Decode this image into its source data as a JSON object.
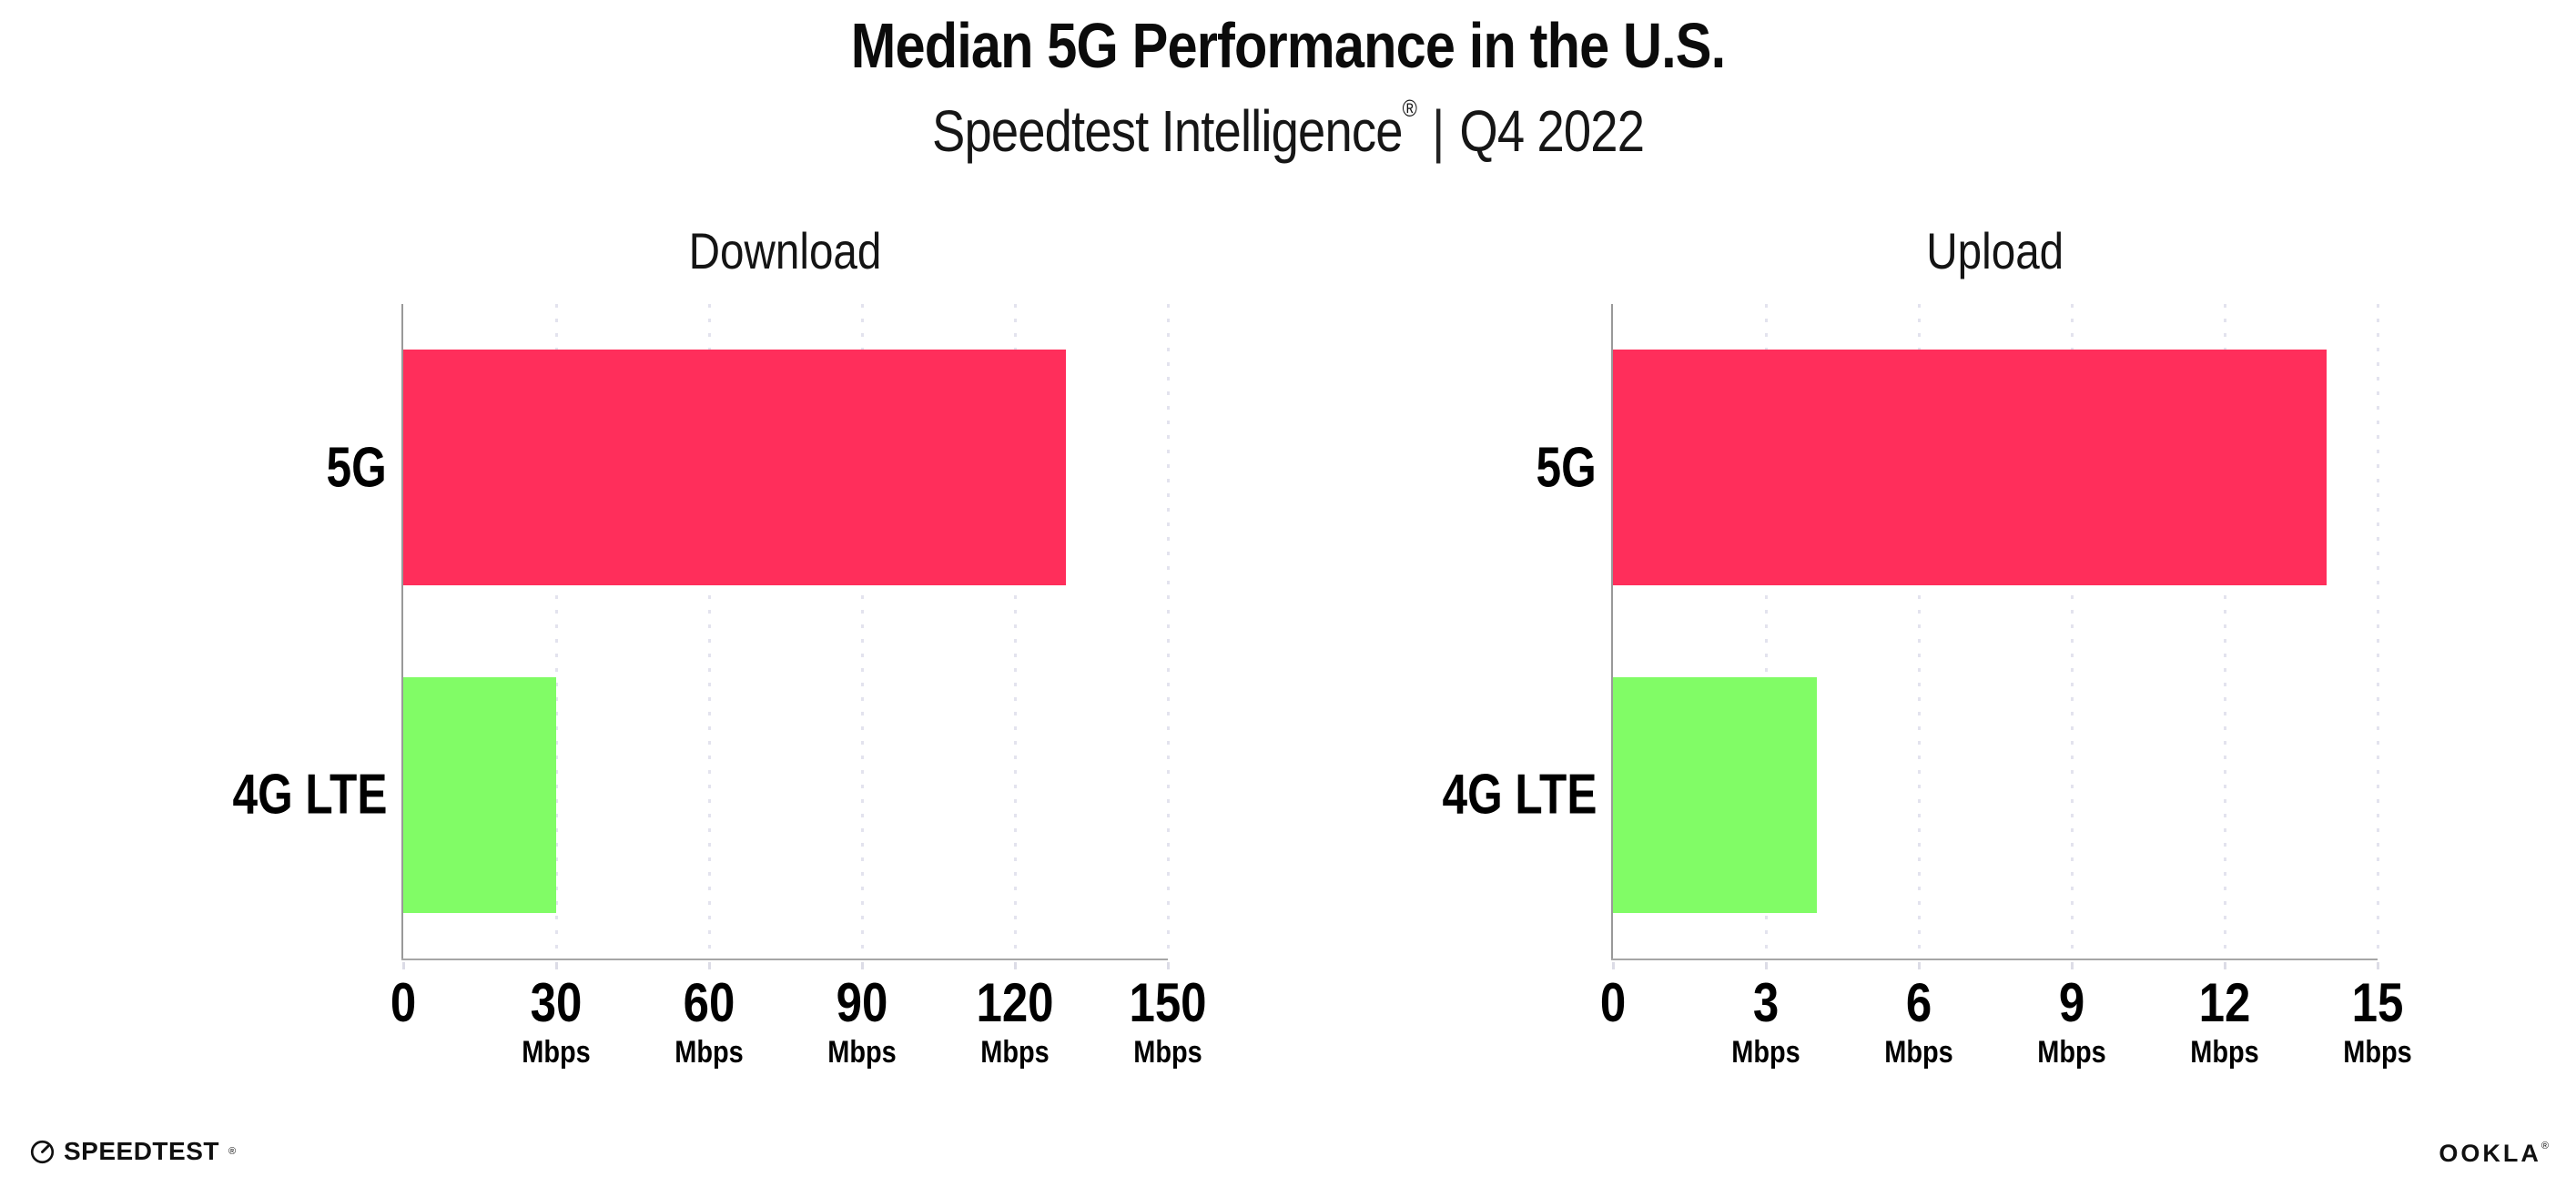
{
  "header": {
    "title": "Median 5G Performance in the U.S.",
    "subtitle_brand": "Speedtest Intelligence",
    "subtitle_reg": "®",
    "subtitle_sep": "|",
    "subtitle_period": "Q4 2022"
  },
  "colors": {
    "bar_5g": "#FF2E5B",
    "bar_4g_lte": "#81FC66",
    "axis_spine": "#999999",
    "gridline": "#E3E3EE",
    "text": "#0B0B0B"
  },
  "chart_data": [
    {
      "type": "bar",
      "orientation": "horizontal",
      "title": "Download",
      "categories": [
        "5G",
        "4G LTE"
      ],
      "values": [
        130,
        30
      ],
      "unit": "Mbps",
      "xlim": [
        0,
        150
      ],
      "xticks": [
        0,
        30,
        60,
        90,
        120,
        150
      ],
      "grid": "vertical dotted",
      "legend": "none",
      "bar_colors": [
        "#FF2E5B",
        "#81FC66"
      ]
    },
    {
      "type": "bar",
      "orientation": "horizontal",
      "title": "Upload",
      "categories": [
        "5G",
        "4G LTE"
      ],
      "values": [
        14,
        4
      ],
      "unit": "Mbps",
      "xlim": [
        0,
        15
      ],
      "xticks": [
        0,
        3,
        6,
        9,
        12,
        15
      ],
      "grid": "vertical dotted",
      "legend": "none",
      "bar_colors": [
        "#FF2E5B",
        "#81FC66"
      ]
    }
  ],
  "footer": {
    "speedtest_icon": "gauge-icon",
    "speedtest_label": "SPEEDTEST",
    "speedtest_mark": "®",
    "ookla_label": "OOKLA",
    "ookla_mark": "®"
  }
}
